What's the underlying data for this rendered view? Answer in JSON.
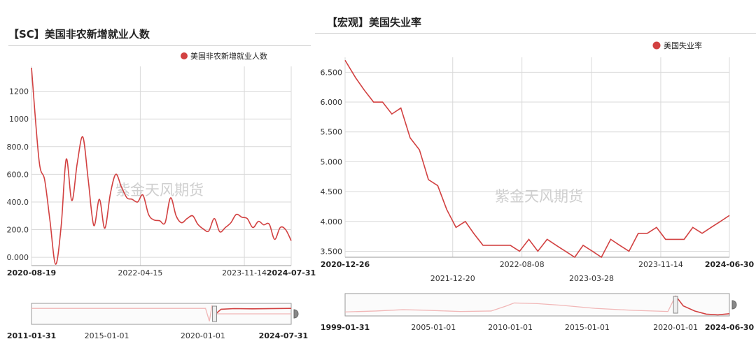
{
  "left_panel": {
    "title": "【SC】美国非农新增就业人数",
    "watermark": "紫金天风期货"
  },
  "right_panel": {
    "title": "【宏观】美国失业率",
    "watermark": "紫金天风期货"
  },
  "colors": {
    "series": "#d24141",
    "navigator_bg_line": "#f1b7b7",
    "grid": "#d9d9d9"
  },
  "chart_data": [
    {
      "type": "line",
      "title": "【SC】美国非农新增就业人数",
      "legend": [
        "美国非农新增就业人数"
      ],
      "legend_position": "top-right",
      "grid": true,
      "x_ticks": [
        "2020-08-19",
        "2022-04-15",
        "2023-11-14",
        "2024-07-31"
      ],
      "y_ticks": [
        "0.000",
        "200.0",
        "400.0",
        "600.0",
        "800.0",
        "1000",
        "1200"
      ],
      "ylim": [
        -60,
        1380
      ],
      "xlim": [
        "2020-08-19",
        "2024-07-31"
      ],
      "series": [
        {
          "name": "美国非农新增就业人数",
          "x": [
            "2020-08-19",
            "2020-09-30",
            "2020-10-31",
            "2020-11-30",
            "2020-12-31",
            "2021-01-31",
            "2021-02-28",
            "2021-03-31",
            "2021-04-30",
            "2021-05-31",
            "2021-06-30",
            "2021-07-31",
            "2021-08-31",
            "2021-09-30",
            "2021-10-31",
            "2021-11-30",
            "2021-12-31",
            "2022-01-31",
            "2022-02-28",
            "2022-03-31",
            "2022-04-30",
            "2022-05-31",
            "2022-06-30",
            "2022-07-31",
            "2022-08-31",
            "2022-09-30",
            "2022-10-31",
            "2022-11-30",
            "2022-12-31",
            "2023-01-31",
            "2023-02-28",
            "2023-03-31",
            "2023-04-30",
            "2023-05-31",
            "2023-06-30",
            "2023-07-31",
            "2023-08-31",
            "2023-09-30",
            "2023-10-31",
            "2023-11-30",
            "2023-12-31",
            "2024-01-31",
            "2024-02-29",
            "2024-03-31",
            "2024-04-30",
            "2024-05-31",
            "2024-06-30",
            "2024-07-31"
          ],
          "values": [
            1370,
            700,
            560,
            260,
            -50,
            230,
            710,
            410,
            680,
            870,
            560,
            230,
            420,
            210,
            460,
            600,
            510,
            430,
            420,
            400,
            450,
            310,
            270,
            265,
            250,
            430,
            300,
            250,
            280,
            300,
            240,
            205,
            190,
            280,
            185,
            215,
            250,
            310,
            290,
            280,
            215,
            260,
            235,
            240,
            130,
            215,
            200,
            120
          ]
        }
      ],
      "navigator": {
        "x_ticks": [
          "2011-01-31",
          "2015-01-01",
          "2020-01-01",
          "2024-07-31"
        ]
      }
    },
    {
      "type": "line",
      "title": "【宏观】美国失业率",
      "legend": [
        "美国失业率"
      ],
      "legend_position": "top-right",
      "grid": true,
      "x_ticks": [
        "2020-12-26",
        "2021-12-20",
        "2022-08-08",
        "2023-03-28",
        "2023-11-14",
        "2024-06-30"
      ],
      "y_ticks": [
        "3.500",
        "4.000",
        "4.500",
        "5.000",
        "5.500",
        "6.000",
        "6.500"
      ],
      "ylim": [
        3.4,
        6.75
      ],
      "xlim": [
        "2020-12-26",
        "2024-06-30"
      ],
      "series": [
        {
          "name": "美国失业率",
          "x": [
            "2020-12-26",
            "2021-01-31",
            "2021-02-28",
            "2021-03-31",
            "2021-04-30",
            "2021-05-31",
            "2021-06-30",
            "2021-07-31",
            "2021-08-31",
            "2021-09-30",
            "2021-10-31",
            "2021-11-30",
            "2021-12-31",
            "2022-01-31",
            "2022-02-28",
            "2022-03-31",
            "2022-04-30",
            "2022-05-31",
            "2022-06-30",
            "2022-07-31",
            "2022-08-31",
            "2022-09-30",
            "2022-10-31",
            "2022-11-30",
            "2022-12-31",
            "2023-01-31",
            "2023-02-28",
            "2023-03-31",
            "2023-04-30",
            "2023-05-31",
            "2023-06-30",
            "2023-07-31",
            "2023-08-31",
            "2023-09-30",
            "2023-10-31",
            "2023-11-30",
            "2023-12-31",
            "2024-01-31",
            "2024-02-29",
            "2024-03-31",
            "2024-04-30",
            "2024-05-31",
            "2024-06-30"
          ],
          "values": [
            6.7,
            6.4,
            6.2,
            6.0,
            6.0,
            5.8,
            5.9,
            5.4,
            5.2,
            4.7,
            4.6,
            4.2,
            3.9,
            4.0,
            3.8,
            3.6,
            3.6,
            3.6,
            3.6,
            3.5,
            3.7,
            3.5,
            3.7,
            3.6,
            3.5,
            3.4,
            3.6,
            3.5,
            3.4,
            3.7,
            3.6,
            3.5,
            3.8,
            3.8,
            3.9,
            3.7,
            3.7,
            3.7,
            3.9,
            3.8,
            3.9,
            4.0,
            4.1
          ]
        }
      ],
      "navigator": {
        "x_ticks": [
          "1999-01-31",
          "2005-01-01",
          "2010-01-01",
          "2015-01-01",
          "2020-01-01",
          "2024-06-30"
        ]
      }
    }
  ]
}
